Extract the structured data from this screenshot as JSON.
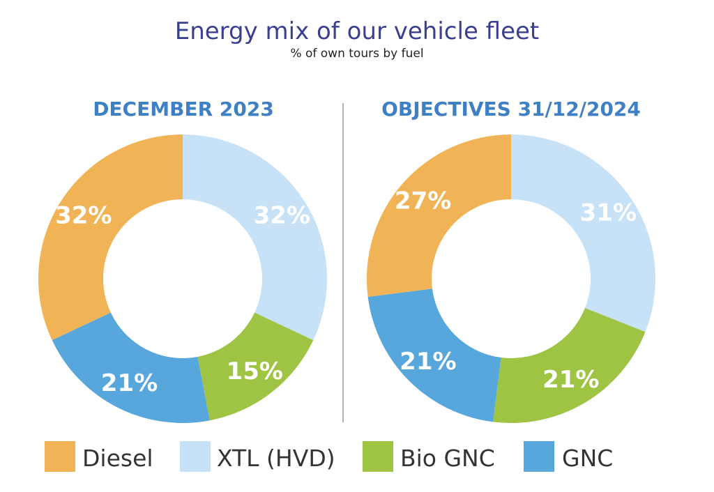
{
  "title": "Energy mix of our vehicle fleet",
  "subtitle": "% of own tours by fuel",
  "colors": {
    "title": "#3a3f8f",
    "panel_title": "#3f7fc4",
    "divider": "#9a9a9a",
    "legend_text": "#333333",
    "label": "#ffffff"
  },
  "chart_data": [
    {
      "type": "donut",
      "title": "DECEMBER 2023",
      "categories": [
        "Diesel",
        "XTL (HVD)",
        "Bio GNC",
        "GNC"
      ],
      "values": [
        32,
        32,
        15,
        21
      ],
      "labels": [
        "32%",
        "32%",
        "15%",
        "21%"
      ],
      "colors": [
        "#f0b356",
        "#c7e2f6",
        "#9fc343",
        "#57a6dc"
      ],
      "start": "top",
      "direction": "clockwise",
      "order": [
        1,
        2,
        3,
        0
      ]
    },
    {
      "type": "donut",
      "title": "OBJECTIVES 31/12/2024",
      "categories": [
        "Diesel",
        "XTL (HVD)",
        "Bio GNC",
        "GNC"
      ],
      "values": [
        27,
        31,
        21,
        21
      ],
      "labels": [
        "27%",
        "31%",
        "21%",
        "21%"
      ],
      "colors": [
        "#f0b356",
        "#c7e2f6",
        "#9fc343",
        "#57a6dc"
      ],
      "start": "top",
      "direction": "clockwise",
      "order": [
        1,
        2,
        3,
        0
      ]
    }
  ],
  "legend": [
    {
      "label": "Diesel",
      "color": "#f0b356"
    },
    {
      "label": "XTL (HVD)",
      "color": "#c7e2f6"
    },
    {
      "label": "Bio GNC",
      "color": "#9fc343"
    },
    {
      "label": "GNC",
      "color": "#57a6dc"
    }
  ]
}
